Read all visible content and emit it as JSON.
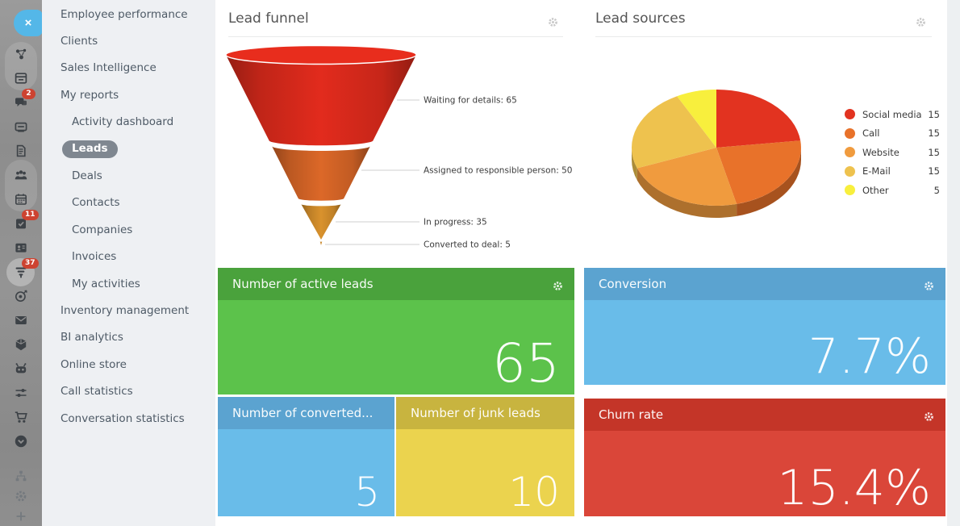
{
  "rail": {
    "close_label": "×",
    "badge_color": "#cd4331",
    "items": [
      {
        "icon": "pulse",
        "badge": ""
      },
      {
        "icon": "kanban",
        "badge": ""
      },
      {
        "icon": "chat",
        "badge": "2"
      },
      {
        "icon": "drawer",
        "badge": ""
      },
      {
        "icon": "document",
        "badge": ""
      },
      {
        "icon": "people",
        "badge": ""
      },
      {
        "icon": "calendar",
        "badge": ""
      },
      {
        "icon": "tasks",
        "badge": "11"
      },
      {
        "icon": "contact-card",
        "badge": ""
      },
      {
        "icon": "crm-funnel",
        "badge": "37",
        "active": true
      },
      {
        "icon": "target",
        "badge": ""
      },
      {
        "icon": "mail",
        "badge": ""
      },
      {
        "icon": "cube",
        "badge": ""
      },
      {
        "icon": "robot",
        "badge": ""
      },
      {
        "icon": "sliders",
        "badge": ""
      },
      {
        "icon": "cart",
        "badge": ""
      },
      {
        "icon": "chevron-circle",
        "badge": ""
      },
      {
        "icon": "sitemap",
        "badge": "",
        "muted": true
      },
      {
        "icon": "gear",
        "badge": "",
        "muted": true
      },
      {
        "icon": "plus",
        "badge": "",
        "muted": true
      }
    ]
  },
  "sidebar": {
    "active_pill_color": "#7f8790",
    "items": [
      {
        "label": "Employee performance",
        "level": 0,
        "active": false
      },
      {
        "label": "Clients",
        "level": 0,
        "active": false
      },
      {
        "label": "Sales Intelligence",
        "level": 0,
        "active": false
      },
      {
        "label": "My reports",
        "level": 0,
        "active": false
      },
      {
        "label": "Activity dashboard",
        "level": 1,
        "active": false
      },
      {
        "label": "Leads",
        "level": 1,
        "active": true
      },
      {
        "label": "Deals",
        "level": 1,
        "active": false
      },
      {
        "label": "Contacts",
        "level": 1,
        "active": false
      },
      {
        "label": "Companies",
        "level": 1,
        "active": false
      },
      {
        "label": "Invoices",
        "level": 1,
        "active": false
      },
      {
        "label": "My activities",
        "level": 1,
        "active": false
      },
      {
        "label": "Inventory management",
        "level": 0,
        "active": false
      },
      {
        "label": "BI analytics",
        "level": 0,
        "active": false
      },
      {
        "label": "Online store",
        "level": 0,
        "active": false
      },
      {
        "label": "Call statistics",
        "level": 0,
        "active": false
      },
      {
        "label": "Conversation statistics",
        "level": 0,
        "active": false
      }
    ]
  },
  "funnel_panel": {
    "title": "Lead funnel"
  },
  "sources_panel": {
    "title": "Lead sources"
  },
  "chart_data": [
    {
      "type": "funnel",
      "title": "Lead funnel",
      "stages": [
        {
          "label": "Waiting for details",
          "value": 65,
          "color": "#d5291b"
        },
        {
          "label": "Assigned to responsible person",
          "value": 50,
          "color": "#d06226"
        },
        {
          "label": "In progress",
          "value": 35,
          "color": "#cd8a2a"
        },
        {
          "label": "Converted to deal",
          "value": 5,
          "color": "#cd8a2a"
        }
      ]
    },
    {
      "type": "pie",
      "title": "Lead sources",
      "legend_position": "right",
      "labels": [
        "Social media",
        "Call",
        "Website",
        "E-Mail",
        "Other"
      ],
      "values": [
        15,
        15,
        15,
        15,
        5
      ],
      "colors": [
        "#e23320",
        "#e8722a",
        "#f09b3e",
        "#eec24e",
        "#f8ef3d"
      ]
    }
  ],
  "cards": {
    "active_leads": {
      "title": "Number of active leads",
      "value": "65",
      "header_color": "#4aa23c",
      "body_color": "#5cc24b",
      "gear": true
    },
    "conversion": {
      "title": "Conversion",
      "value": "7.7%",
      "header_color": "#5ba3d0",
      "body_color": "#69bce9",
      "gear": true
    },
    "converted": {
      "title": "Number of converted...",
      "value": "5",
      "header_color": "#5ba3d0",
      "body_color": "#69bce9",
      "gear": false
    },
    "junk": {
      "title": "Number of junk leads",
      "value": "10",
      "header_color": "#c8b43f",
      "body_color": "#ebd34e",
      "gear": false
    },
    "churn": {
      "title": "Churn rate",
      "value": "15.4%",
      "header_color": "#c43528",
      "body_color": "#da4639",
      "gear": true
    }
  }
}
